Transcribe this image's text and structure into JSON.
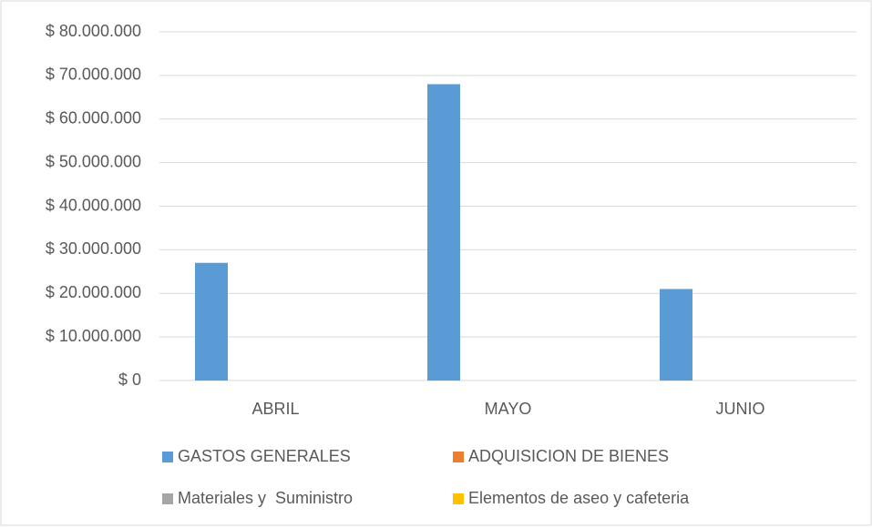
{
  "chart_data": {
    "type": "bar",
    "categories": [
      "ABRIL",
      "MAYO",
      "JUNIO"
    ],
    "series": [
      {
        "name": "GASTOS GENERALES",
        "color": "#5b9bd5",
        "values": [
          27000000,
          68000000,
          21000000
        ]
      },
      {
        "name": "ADQUISICION DE BIENES",
        "color": "#ed7d31",
        "values": [
          0,
          0,
          0
        ]
      },
      {
        "name": "Materiales y  Suministro",
        "color": "#a5a5a5",
        "values": [
          0,
          0,
          0
        ]
      },
      {
        "name": "Elementos de aseo y cafeteria",
        "color": "#ffc000",
        "values": [
          0,
          0,
          0
        ]
      }
    ],
    "ylim": [
      0,
      80000000
    ],
    "yticks": [
      {
        "value": 0,
        "label": "$ 0"
      },
      {
        "value": 10000000,
        "label": "$ 10.000.000"
      },
      {
        "value": 20000000,
        "label": "$ 20.000.000"
      },
      {
        "value": 30000000,
        "label": "$ 30.000.000"
      },
      {
        "value": 40000000,
        "label": "$ 40.000.000"
      },
      {
        "value": 50000000,
        "label": "$ 50.000.000"
      },
      {
        "value": 60000000,
        "label": "$ 60.000.000"
      },
      {
        "value": 70000000,
        "label": "$ 70.000.000"
      },
      {
        "value": 80000000,
        "label": "$ 80.000.000"
      }
    ],
    "grid": true,
    "legend": "bottom"
  }
}
